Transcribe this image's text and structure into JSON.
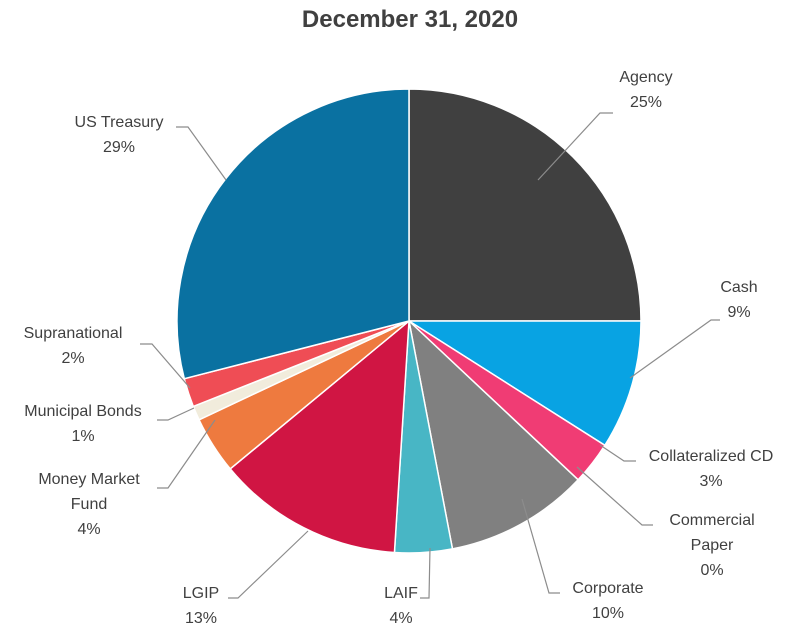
{
  "chart_data": {
    "type": "pie",
    "title": "December 31, 2020",
    "legend": "none",
    "slices": [
      {
        "name": "Agency",
        "value": 25,
        "label": "25%",
        "color": "#404040"
      },
      {
        "name": "Cash",
        "value": 9,
        "label": "9%",
        "color": "#08a3e3"
      },
      {
        "name": "Collateralized CD",
        "value": 3,
        "label": "3%",
        "color": "#f03c74"
      },
      {
        "name": "Commercial Paper",
        "value": 0,
        "label": "0%",
        "color": "#2f4f6f"
      },
      {
        "name": "Corporate",
        "value": 10,
        "label": "10%",
        "color": "#808080"
      },
      {
        "name": "LAIF",
        "value": 4,
        "label": "4%",
        "color": "#48b6c5"
      },
      {
        "name": "LGIP",
        "value": 13,
        "label": "13%",
        "color": "#d01543"
      },
      {
        "name": "Money Market Fund",
        "value": 4,
        "label": "4%",
        "color": "#ee7a3f"
      },
      {
        "name": "Municipal Bonds",
        "value": 1,
        "label": "1%",
        "color": "#f1ecdc"
      },
      {
        "name": "Supranational",
        "value": 2,
        "label": "2%",
        "color": "#ef4d55"
      },
      {
        "name": "US Treasury",
        "value": 29,
        "label": "29%",
        "color": "#0a71a1"
      }
    ]
  }
}
